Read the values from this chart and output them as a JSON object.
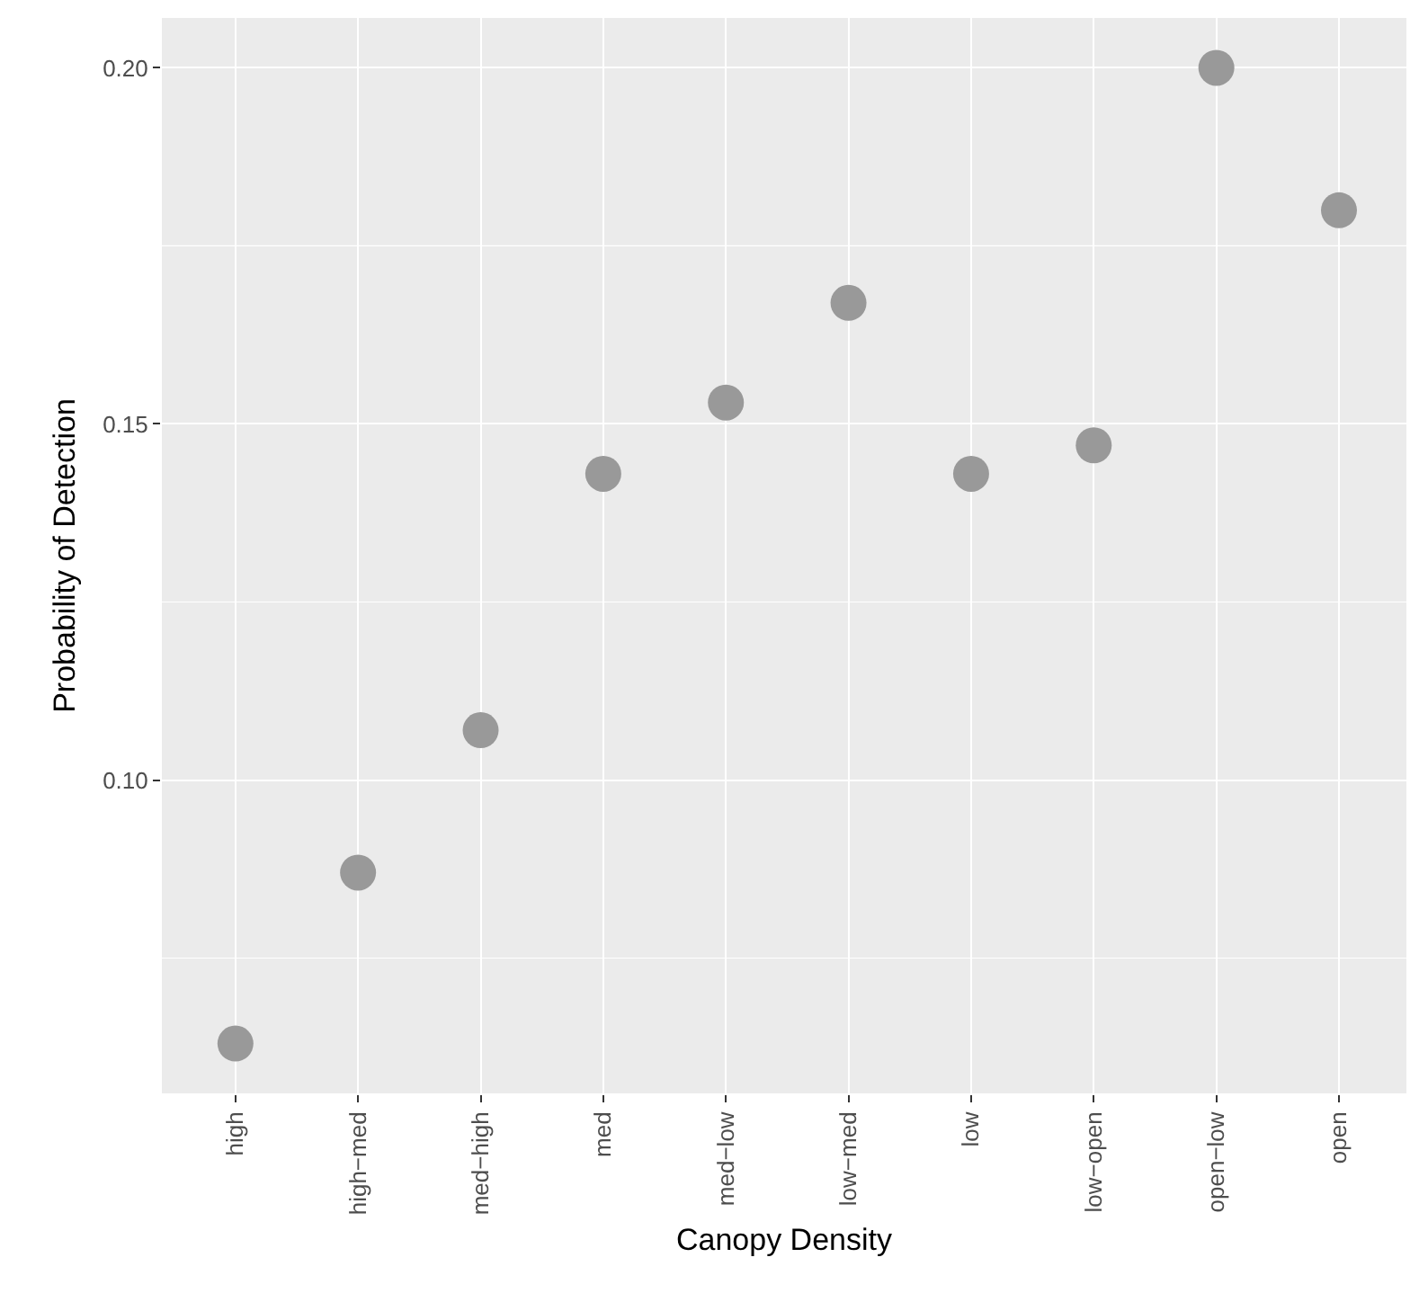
{
  "chart_data": {
    "type": "scatter",
    "xlabel": "Canopy Density",
    "ylabel": "Probability of Detection",
    "categories": [
      "high",
      "high−med",
      "med−high",
      "med",
      "med−low",
      "low−med",
      "low",
      "low−open",
      "open−low",
      "open"
    ],
    "series": [
      {
        "color": "#999999",
        "values": [
          0.063,
          0.087,
          0.107,
          0.143,
          0.153,
          0.167,
          0.143,
          0.147,
          0.2,
          0.18
        ]
      }
    ],
    "ylim": [
      0.056,
      0.207
    ],
    "yticks": [
      {
        "value": 0.075,
        "label": null
      },
      {
        "value": 0.1,
        "label": "0.10"
      },
      {
        "value": 0.125,
        "label": null
      },
      {
        "value": 0.15,
        "label": "0.15"
      },
      {
        "value": 0.175,
        "label": null
      },
      {
        "value": 0.2,
        "label": "0.20"
      }
    ],
    "grid": true,
    "marker": "circle"
  }
}
